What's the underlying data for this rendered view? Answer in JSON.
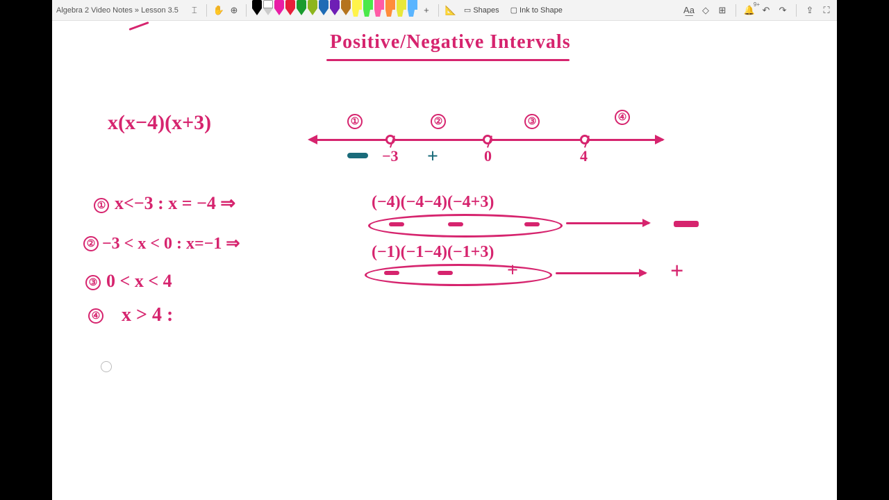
{
  "colors": {
    "pink": "#d6246e",
    "teal": "#1a6b7a",
    "toolbar_bg": "#f3f3f3",
    "canvas_bg": "#ffffff",
    "black": "#000000"
  },
  "toolbar": {
    "breadcrumb": "Algebra 2 Video Notes » Lesson 3.5",
    "text_cursor": "⌶",
    "hand": "✋",
    "lasso": "⊕",
    "add_pen": "+",
    "ruler": "📐",
    "shapes_label": "Shapes",
    "ink_to_shape_label": "Ink to Shape",
    "ink_to_text": "A͟a",
    "eraser": "◇",
    "insert": "⊞",
    "bell_badge": "9+",
    "undo": "↶",
    "redo": "↷",
    "share": "⇪",
    "fullscreen": "⛶"
  },
  "pens": [
    {
      "color": "#000000",
      "type": "pen"
    },
    {
      "color": "#ffffff",
      "type": "pen",
      "outline": true
    },
    {
      "color": "#e81ea6",
      "type": "pen"
    },
    {
      "color": "#e81e3a",
      "type": "pen"
    },
    {
      "color": "#1a9b2e",
      "type": "pen"
    },
    {
      "color": "#8db51e",
      "type": "pen"
    },
    {
      "color": "#1e6bb5",
      "type": "pen"
    },
    {
      "color": "#6e1eb5",
      "type": "pen"
    },
    {
      "color": "#b5741e",
      "type": "pen"
    },
    {
      "color": "#fff34a",
      "type": "highlighter"
    },
    {
      "color": "#4ae84a",
      "type": "highlighter"
    },
    {
      "color": "#ff5aa6",
      "type": "highlighter"
    },
    {
      "color": "#ff8c3a",
      "type": "highlighter"
    },
    {
      "color": "#e8e83a",
      "type": "highlighter"
    },
    {
      "color": "#5ab5ff",
      "type": "highlighter"
    }
  ],
  "content": {
    "title": "Positive/Negative Intervals",
    "expression": "x(x−4)(x+3)",
    "numline": {
      "region_labels": [
        "①",
        "②",
        "③",
        "④"
      ],
      "points": [
        "−3",
        "0",
        "4"
      ],
      "signs_between": [
        "−",
        "+"
      ]
    },
    "lines": {
      "l1_circ": "①",
      "l1": "x<−3 :  x = −4  ⇒",
      "l1_calc": "(−4)(−4−4)(−4+3)",
      "l1_signs": [
        "−",
        "−",
        "−"
      ],
      "l1_result": "−",
      "l2_circ": "②",
      "l2": "−3 < x < 0 : x=−1  ⇒",
      "l2_calc": "(−1)(−1−4)(−1+3)",
      "l2_signs": [
        "−",
        "−",
        "+"
      ],
      "l2_result": "+",
      "l3_circ": "③",
      "l3": "0 < x < 4",
      "l4_circ": "④",
      "l4": "x > 4 :"
    }
  }
}
